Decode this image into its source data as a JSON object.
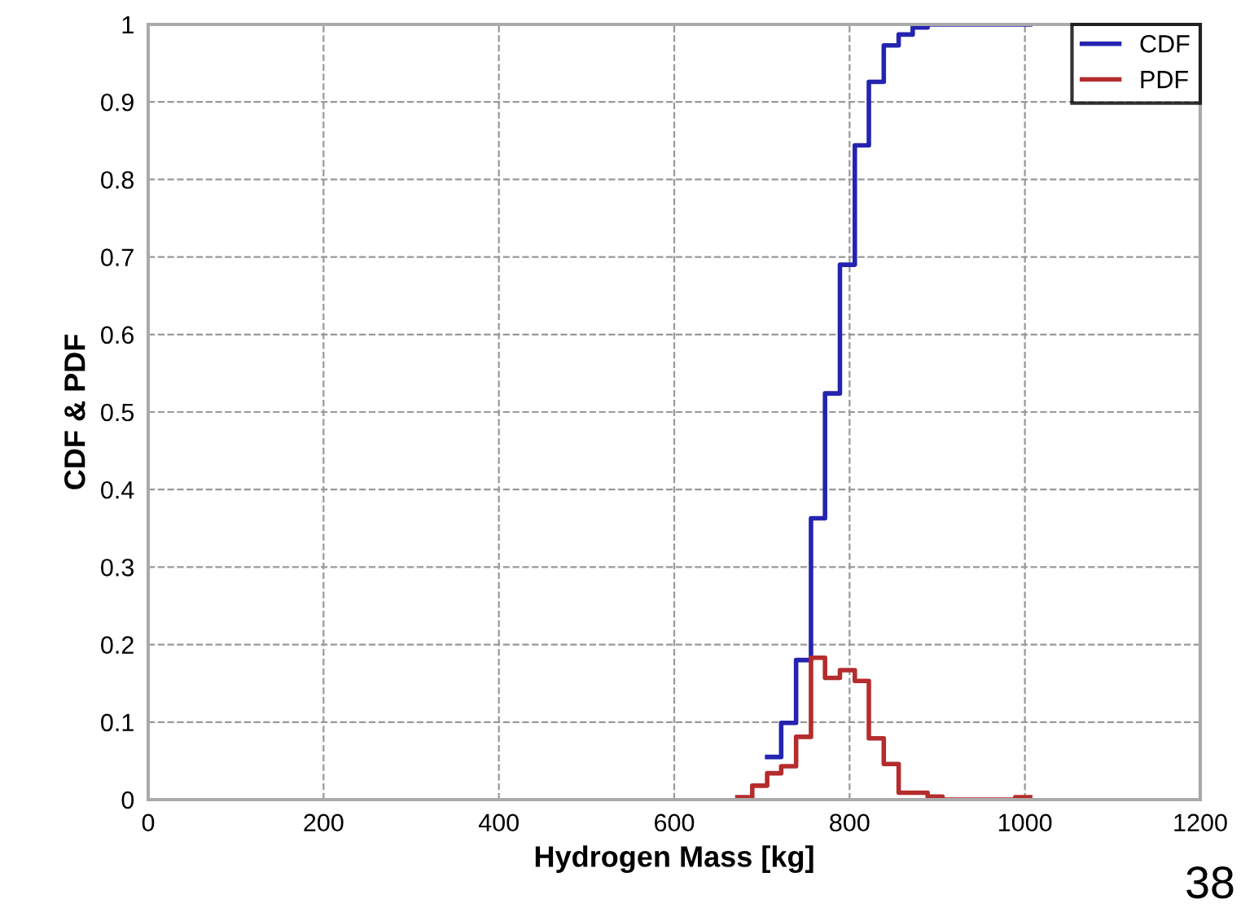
{
  "chart_data": {
    "type": "step",
    "xlabel": "Hydrogen Mass [kg]",
    "ylabel": "CDF & PDF",
    "series": [
      {
        "name": "CDF",
        "color": "#2424b0",
        "x": [
          706,
          722,
          739,
          756,
          772,
          789,
          806,
          822,
          839,
          856,
          872,
          889,
          906,
          1006
        ],
        "values": [
          0.055,
          0.099,
          0.18,
          0.363,
          0.524,
          0.69,
          0.844,
          0.926,
          0.973,
          0.987,
          0.996,
          1,
          1,
          1
        ]
      },
      {
        "name": "PDF",
        "color": "#b42c2c",
        "x": [
          672,
          689,
          706,
          722,
          739,
          756,
          772,
          789,
          806,
          822,
          839,
          856,
          872,
          889,
          906,
          922,
          939,
          956,
          972,
          989,
          1006
        ],
        "values": [
          0.003,
          0.018,
          0.034,
          0.043,
          0.081,
          0.183,
          0.157,
          0.167,
          0.153,
          0.079,
          0.046,
          0.009,
          0.009,
          0.004,
          0,
          0,
          0,
          0,
          0,
          0.003,
          0.003
        ]
      }
    ],
    "xlim": [
      0,
      1200
    ],
    "xticks": [
      0,
      200,
      400,
      600,
      800,
      1000,
      1200
    ],
    "ylim": [
      0,
      1
    ],
    "yticks": [
      0,
      0.1,
      0.2,
      0.3,
      0.4,
      0.5,
      0.6,
      0.7,
      0.8,
      0.9,
      1
    ],
    "grid": true,
    "line_style": "solid",
    "legend": "top right",
    "annotations": [
      "38"
    ]
  }
}
